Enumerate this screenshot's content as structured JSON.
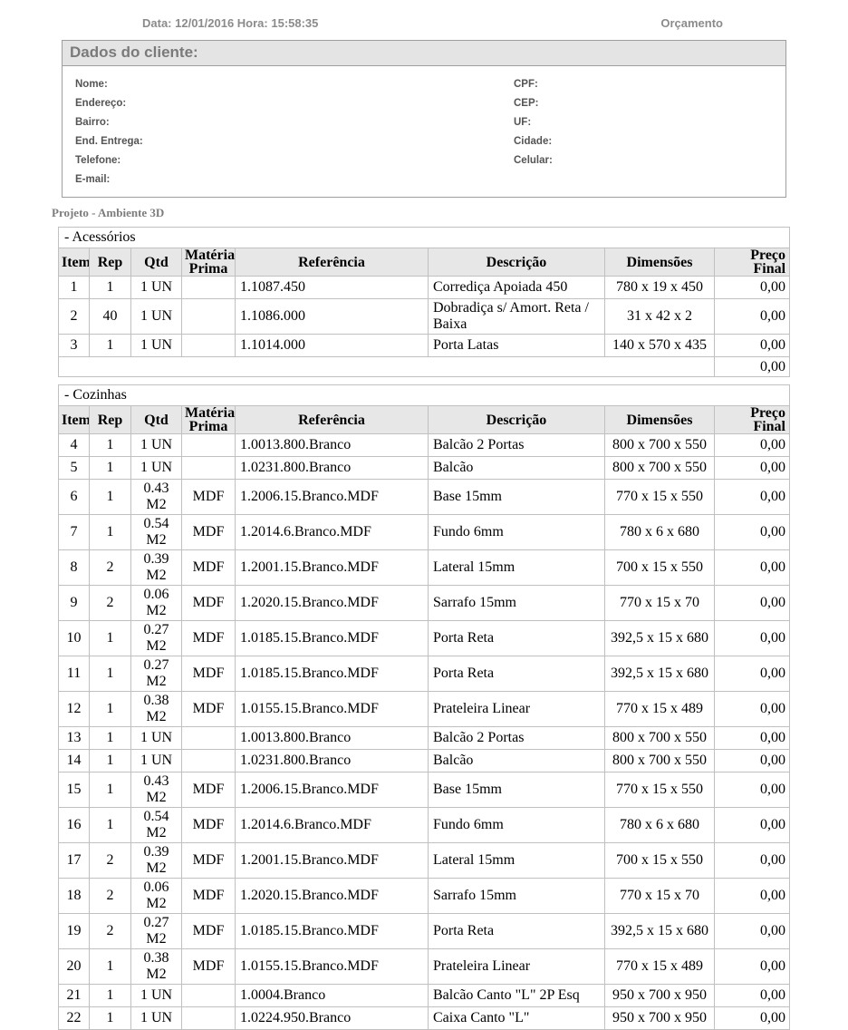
{
  "header": {
    "date_label": "Data: 12/01/2016 Hora: 15:58:35",
    "doc_type": "Orçamento"
  },
  "client": {
    "title": "Dados do cliente:",
    "left_fields": [
      "Nome:",
      "Endereço:",
      "Bairro:",
      "End. Entrega:",
      "Telefone:",
      "E-mail:"
    ],
    "right_fields": [
      "CPF:",
      "CEP:",
      "UF:",
      "Cidade:",
      "Celular:"
    ]
  },
  "project_title": "Projeto - Ambiente 3D",
  "columns": [
    "Item",
    "Rep",
    "Qtd",
    "Matéria Prima",
    "Referência",
    "Descrição",
    "Dimensões",
    "Preço Final"
  ],
  "sections": [
    {
      "title": "- Acessórios",
      "rows": [
        [
          "1",
          "1",
          "1 UN",
          "",
          "1.1087.450",
          "Corrediça Apoiada 450",
          "780 x 19 x 450",
          "0,00"
        ],
        [
          "2",
          "40",
          "1 UN",
          "",
          "1.1086.000",
          "Dobradiça s/ Amort. Reta / Baixa",
          "31 x 42 x 2",
          "0,00"
        ],
        [
          "3",
          "1",
          "1 UN",
          "",
          "1.1014.000",
          "Porta Latas",
          "140 x 570 x 435",
          "0,00"
        ]
      ],
      "total": "0,00"
    },
    {
      "title": "- Cozinhas",
      "rows": [
        [
          "4",
          "1",
          "1 UN",
          "",
          "1.0013.800.Branco",
          "Balcão 2 Portas",
          "800 x 700 x 550",
          "0,00"
        ],
        [
          "5",
          "1",
          "1 UN",
          "",
          "1.0231.800.Branco",
          "Balcão",
          "800 x 700 x 550",
          "0,00"
        ],
        [
          "6",
          "1",
          "0.43 M2",
          "MDF",
          "1.2006.15.Branco.MDF",
          "Base 15mm",
          "770 x 15 x 550",
          "0,00"
        ],
        [
          "7",
          "1",
          "0.54 M2",
          "MDF",
          "1.2014.6.Branco.MDF",
          "Fundo 6mm",
          "780 x 6 x 680",
          "0,00"
        ],
        [
          "8",
          "2",
          "0.39 M2",
          "MDF",
          "1.2001.15.Branco.MDF",
          "Lateral 15mm",
          "700 x 15 x 550",
          "0,00"
        ],
        [
          "9",
          "2",
          "0.06 M2",
          "MDF",
          "1.2020.15.Branco.MDF",
          "Sarrafo 15mm",
          "770 x 15 x 70",
          "0,00"
        ],
        [
          "10",
          "1",
          "0.27 M2",
          "MDF",
          "1.0185.15.Branco.MDF",
          "Porta Reta",
          "392,5 x 15 x 680",
          "0,00"
        ],
        [
          "11",
          "1",
          "0.27 M2",
          "MDF",
          "1.0185.15.Branco.MDF",
          "Porta Reta",
          "392,5 x 15 x 680",
          "0,00"
        ],
        [
          "12",
          "1",
          "0.38 M2",
          "MDF",
          "1.0155.15.Branco.MDF",
          "Prateleira Linear",
          "770 x 15 x 489",
          "0,00"
        ],
        [
          "13",
          "1",
          "1 UN",
          "",
          "1.0013.800.Branco",
          "Balcão 2 Portas",
          "800 x 700 x 550",
          "0,00"
        ],
        [
          "14",
          "1",
          "1 UN",
          "",
          "1.0231.800.Branco",
          "Balcão",
          "800 x 700 x 550",
          "0,00"
        ],
        [
          "15",
          "1",
          "0.43 M2",
          "MDF",
          "1.2006.15.Branco.MDF",
          "Base 15mm",
          "770 x 15 x 550",
          "0,00"
        ],
        [
          "16",
          "1",
          "0.54 M2",
          "MDF",
          "1.2014.6.Branco.MDF",
          "Fundo 6mm",
          "780 x 6 x 680",
          "0,00"
        ],
        [
          "17",
          "2",
          "0.39 M2",
          "MDF",
          "1.2001.15.Branco.MDF",
          "Lateral 15mm",
          "700 x 15 x 550",
          "0,00"
        ],
        [
          "18",
          "2",
          "0.06 M2",
          "MDF",
          "1.2020.15.Branco.MDF",
          "Sarrafo 15mm",
          "770 x 15 x 70",
          "0,00"
        ],
        [
          "19",
          "2",
          "0.27 M2",
          "MDF",
          "1.0185.15.Branco.MDF",
          "Porta Reta",
          "392,5 x 15 x 680",
          "0,00"
        ],
        [
          "20",
          "1",
          "0.38 M2",
          "MDF",
          "1.0155.15.Branco.MDF",
          "Prateleira Linear",
          "770 x 15 x 489",
          "0,00"
        ],
        [
          "21",
          "1",
          "1 UN",
          "",
          "1.0004.Branco",
          "Balcão Canto \"L\" 2P Esq",
          "950 x 700 x 950",
          "0,00"
        ],
        [
          "22",
          "1",
          "1 UN",
          "",
          "1.0224.950.Branco",
          "Caixa Canto \"L\"",
          "950 x 700 x 950",
          "0,00"
        ]
      ],
      "total": null
    }
  ],
  "colors": {
    "header_text": "#8b8b8b",
    "client_title_bg": "#e4e4e4",
    "table_header_bg": "#e7e7e7",
    "table_border": "#c0c0c0"
  }
}
